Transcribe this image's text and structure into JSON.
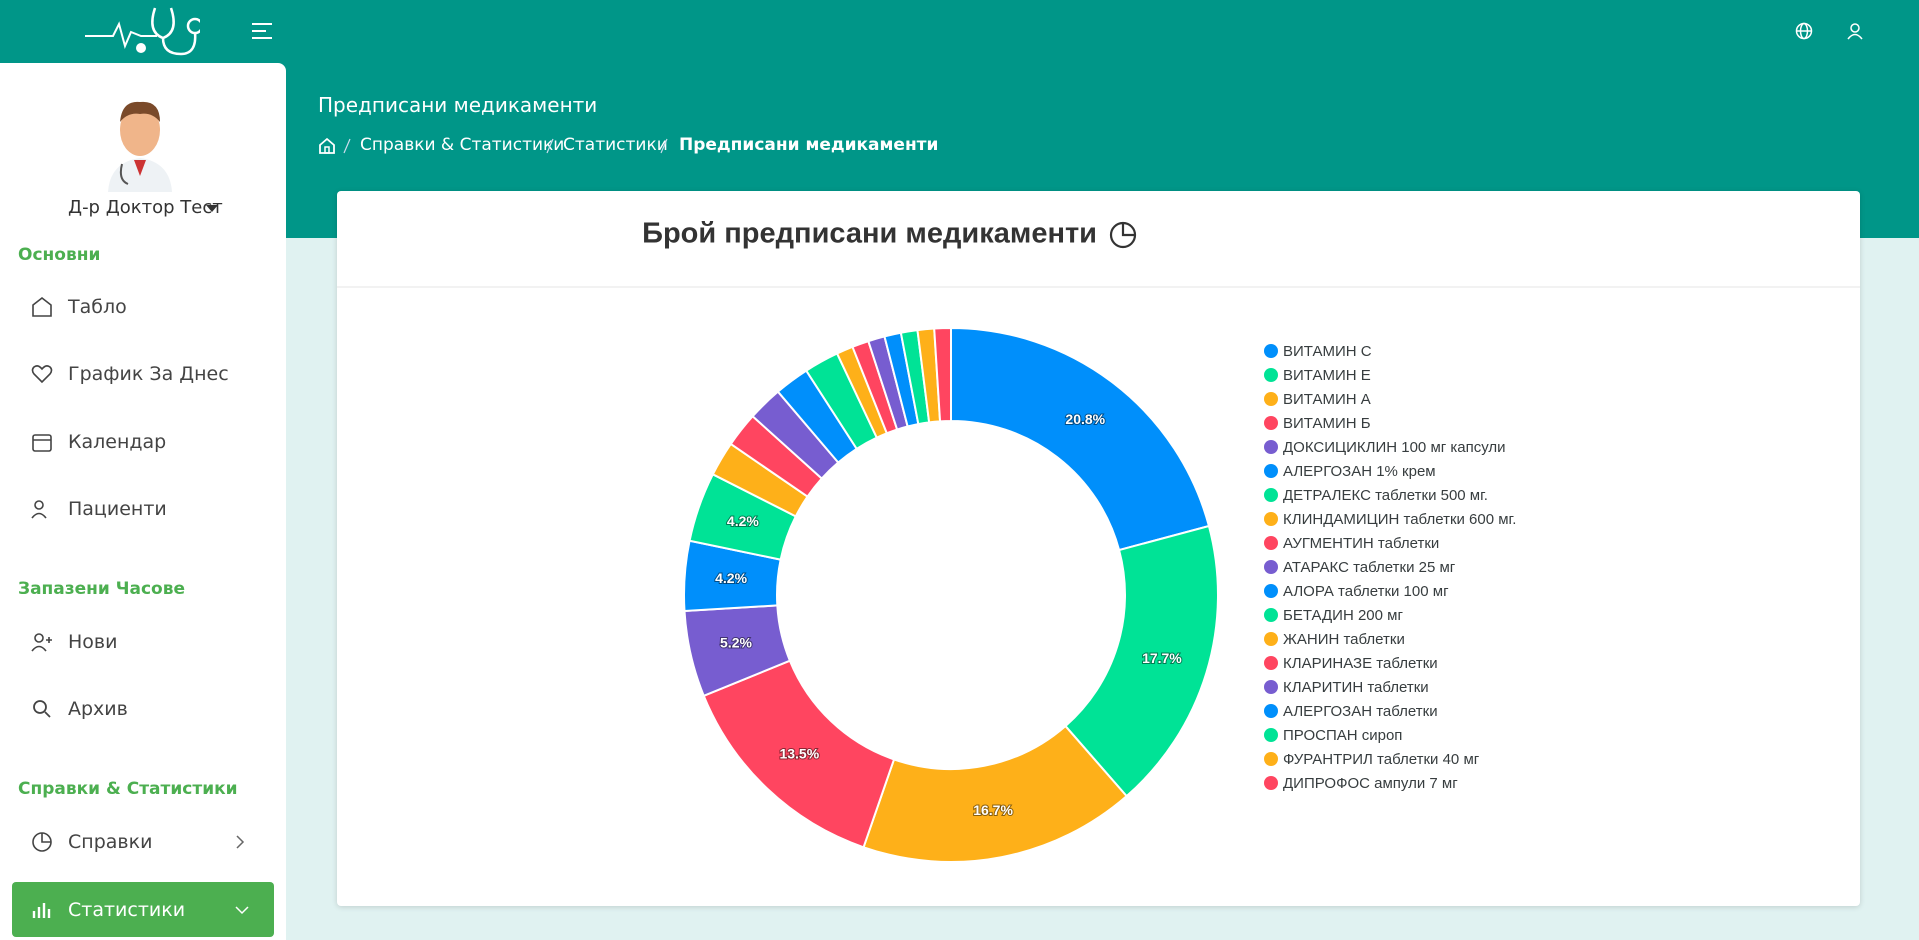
{
  "header": {
    "page_title": "Предписани медикаменти",
    "breadcrumb": [
      "Справки & Статистики",
      "Статистики",
      "Предписани медикаменти"
    ]
  },
  "sidebar": {
    "user": "Д-р Доктор Тест",
    "sections": [
      {
        "title": "Основни",
        "items": [
          "Табло",
          "График За Днес",
          "Календар",
          "Пациенти"
        ]
      },
      {
        "title": "Запазени Часове",
        "items": [
          "Нови",
          "Архив"
        ]
      },
      {
        "title": "Справки & Статистики",
        "items": [
          "Справки",
          "Статистики"
        ]
      }
    ]
  },
  "chart_data": {
    "type": "donut",
    "title": "Брой предписани медикаменти",
    "categories": [
      "ВИТАМИН C",
      "ВИТАМИН Е",
      "ВИТАМИН А",
      "ВИТАМИН Б",
      "ДОКСИЦИКЛИН 100 мг капсули",
      "АЛЕРГОЗАН 1% крем",
      "ДЕТРАЛЕКС таблетки 500 мг.",
      "КЛИНДАМИЦИН таблетки 600 мг.",
      "АУГМЕНТИН таблетки",
      "АТАРАКС таблетки 25 мг",
      "АЛОРА таблетки 100 мг",
      "БЕТАДИН 200 мг",
      "ЖАНИН таблетки",
      "КЛАРИНАЗЕ таблетки",
      "КЛАРИТИН таблетки",
      "АЛЕРГОЗАН таблетки",
      "ПРОСПАН сироп",
      "ФУРАНТРИЛ таблетки 40 мг",
      "ДИПРОФОС ампули 7 мг"
    ],
    "values": [
      20.8,
      17.7,
      16.7,
      13.5,
      5.2,
      4.2,
      4.2,
      2.1,
      2.1,
      2.1,
      2.1,
      2.1,
      1.0,
      1.0,
      1.0,
      1.0,
      1.0,
      1.0,
      1.0
    ],
    "value_labels": [
      "20.8%",
      "17.7%",
      "16.7%",
      "13.5%",
      "5.2%",
      "4.2%",
      "4.2%",
      null,
      null,
      null,
      null,
      null,
      null,
      null,
      null,
      null,
      null,
      null,
      null
    ],
    "colors": [
      "#008ffb",
      "#00e396",
      "#feb019",
      "#ff4560",
      "#775dd0",
      "#008ffb",
      "#00e396",
      "#feb019",
      "#ff4560",
      "#775dd0",
      "#008ffb",
      "#00e396",
      "#feb019",
      "#ff4560",
      "#775dd0",
      "#008ffb",
      "#00e396",
      "#feb019",
      "#ff4560"
    ],
    "legend": "right"
  }
}
